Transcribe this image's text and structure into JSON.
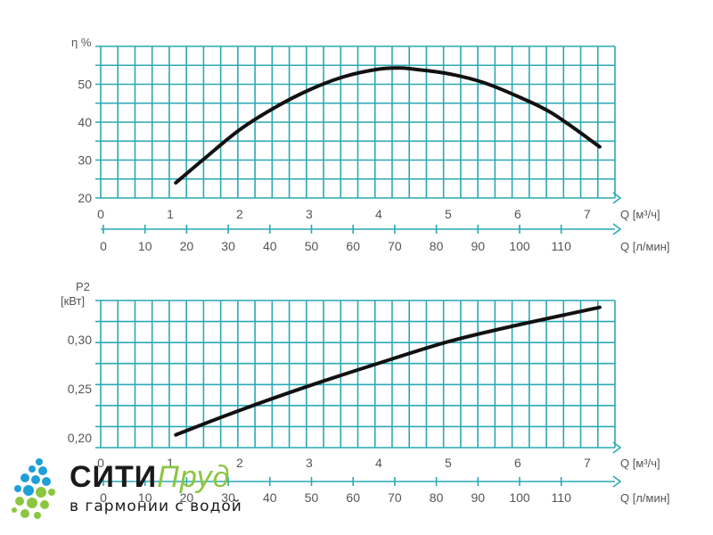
{
  "chart_data": [
    {
      "type": "line",
      "ylabel": "η %",
      "xlabel": "Q [м³/ч]",
      "xlabel2": "Q [л/мин]",
      "xlim": [
        0,
        7.4
      ],
      "ylim": [
        20,
        60
      ],
      "x_ticks": [
        "0",
        "1",
        "2",
        "3",
        "4",
        "5",
        "6",
        "7"
      ],
      "y_ticks": [
        "20",
        "30",
        "40",
        "50"
      ],
      "x2_ticks": [
        "0",
        "10",
        "20",
        "30",
        "40",
        "50",
        "60",
        "70",
        "80",
        "90",
        "100",
        "110"
      ],
      "grid": true,
      "series": [
        {
          "x": [
            1.08,
            1.5,
            2.0,
            2.5,
            3.0,
            3.5,
            4.0,
            4.3,
            4.5,
            5.0,
            5.5,
            6.0,
            6.5,
            7.18
          ],
          "y": [
            24,
            30.5,
            38,
            43.8,
            48.5,
            52,
            54,
            54.3,
            54,
            52.8,
            50.5,
            46.8,
            42.3,
            33.5
          ],
          "color": "#111111"
        }
      ]
    },
    {
      "type": "line",
      "ylabel": "P2",
      "ylabel2": "[кВт]",
      "xlabel": "Q [м³/ч]",
      "xlabel2": "Q [л/мин]",
      "xlim": [
        0,
        7.4
      ],
      "ylim": [
        0.19,
        0.34
      ],
      "x_ticks": [
        "0",
        "1",
        "2",
        "3",
        "4",
        "5",
        "6",
        "7"
      ],
      "y_ticks": [
        "0,20",
        "0,25",
        "0,30"
      ],
      "x2_ticks": [
        "0",
        "10",
        "20",
        "30",
        "40",
        "50",
        "60",
        "70",
        "80",
        "90",
        "100",
        "110"
      ],
      "grid": true,
      "series": [
        {
          "x": [
            1.08,
            2.0,
            3.0,
            4.0,
            5.0,
            6.0,
            7.18
          ],
          "y": [
            0.203,
            0.228,
            0.253,
            0.276,
            0.298,
            0.315,
            0.333
          ],
          "color": "#111111"
        }
      ]
    }
  ],
  "colors": {
    "grid": "#2aa9b3",
    "curve": "#111111",
    "logo_dark": "#1a1a1a",
    "logo_green": "#8cc63f",
    "logo_blue": "#1e9fd8"
  },
  "logo": {
    "word1": "СИТИ",
    "word2": "Пруд",
    "tagline": "в гармонии с водой",
    "icon": "water-drops-icon"
  }
}
